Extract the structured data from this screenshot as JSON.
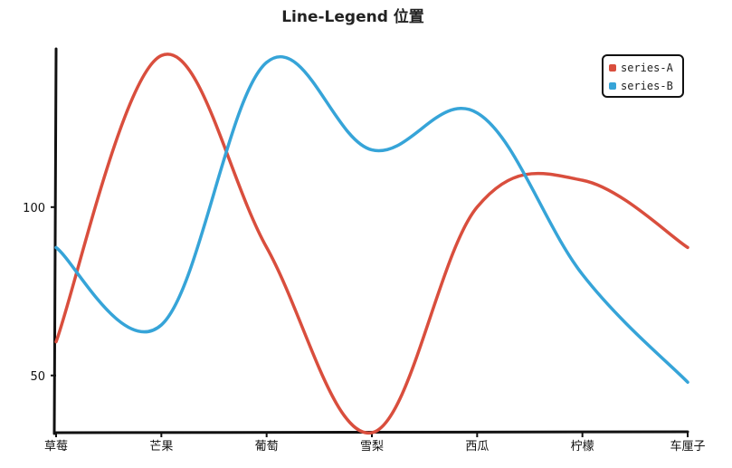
{
  "chart_data": {
    "type": "line",
    "title": "Line-Legend 位置",
    "categories": [
      "草莓",
      "芒果",
      "葡萄",
      "雪梨",
      "西瓜",
      "柠檬",
      "车厘子"
    ],
    "series": [
      {
        "name": "series-A",
        "values": [
          60,
          145,
          88,
          33,
          100,
          108,
          88
        ],
        "color": "#d94e3d"
      },
      {
        "name": "series-B",
        "values": [
          88,
          65,
          143,
          117,
          128,
          80,
          48
        ],
        "color": "#36a4d8"
      }
    ],
    "yticks": [
      50,
      100
    ],
    "ylim": [
      33,
      147
    ],
    "legend_position": "top-right",
    "grid": false,
    "smooth": true
  }
}
